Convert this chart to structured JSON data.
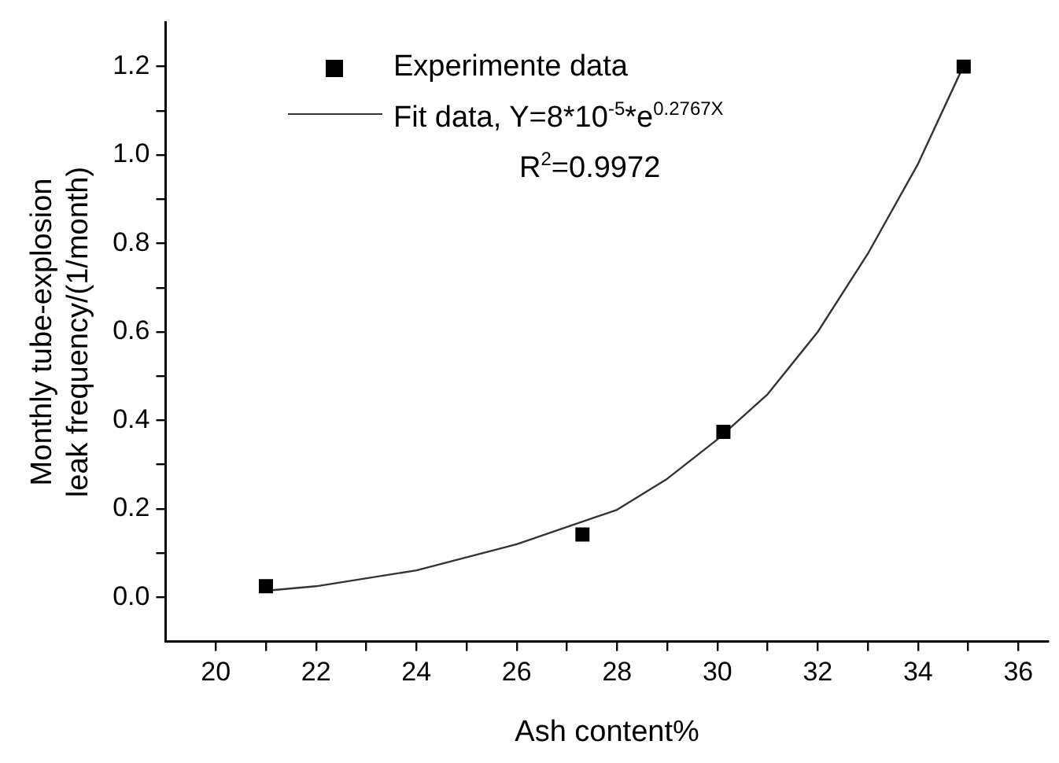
{
  "chart_data": {
    "type": "scatter",
    "xlabel": "Ash content%",
    "ylabel": "Monthly tube-explosion\nleak frequency/(1/month)",
    "xlim": [
      19,
      36.6
    ],
    "ylim": [
      -0.1,
      1.3
    ],
    "xticks": [
      20,
      {
        "value": 21,
        "label": null
      },
      22,
      {
        "value": 23,
        "label": null
      },
      24,
      {
        "value": 25,
        "label": null
      },
      26,
      {
        "value": 27,
        "label": null
      },
      28,
      {
        "value": 29,
        "label": null
      },
      30,
      {
        "value": 31,
        "label": null
      },
      32,
      {
        "value": 33,
        "label": null
      },
      34,
      {
        "value": 35,
        "label": null
      },
      36
    ],
    "yticks": [
      {
        "value": 0,
        "label": "0.0"
      },
      {
        "value": 0.1,
        "label": null
      },
      {
        "value": 0.2,
        "label": "0.2"
      },
      {
        "value": 0.3,
        "label": null
      },
      {
        "value": 0.4,
        "label": "0.4"
      },
      {
        "value": 0.5,
        "label": null
      },
      {
        "value": 0.6,
        "label": "0.6"
      },
      {
        "value": 0.7,
        "label": null
      },
      {
        "value": 0.8,
        "label": "0.8"
      },
      {
        "value": 0.9,
        "label": null
      },
      {
        "value": 1.0,
        "label": "1.0"
      },
      {
        "value": 1.1,
        "label": null
      },
      {
        "value": 1.2,
        "label": "1.2"
      }
    ],
    "grid": false,
    "legend": "top left",
    "annotations": [
      "R$^{2}$=0.9972"
    ],
    "series": [
      {
        "name": "Experimente data",
        "marker": "square",
        "color": "#000000",
        "x": [
          21.0,
          27.31,
          30.12,
          34.91
        ],
        "values": [
          0.025,
          0.142,
          0.374,
          1.2
        ]
      },
      {
        "name": "Fit data, Y=8*10$^{-5}$*e$^{0.2767X}$",
        "type": "line",
        "marker": "none",
        "line_style": "solid",
        "color": "#333333",
        "x": [
          21,
          22,
          24,
          26,
          28,
          29,
          30,
          31,
          32,
          33,
          34,
          34.9
        ],
        "values": [
          0.015,
          0.025,
          0.061,
          0.12,
          0.198,
          0.268,
          0.357,
          0.459,
          0.6,
          0.777,
          0.98,
          1.2
        ]
      }
    ]
  }
}
